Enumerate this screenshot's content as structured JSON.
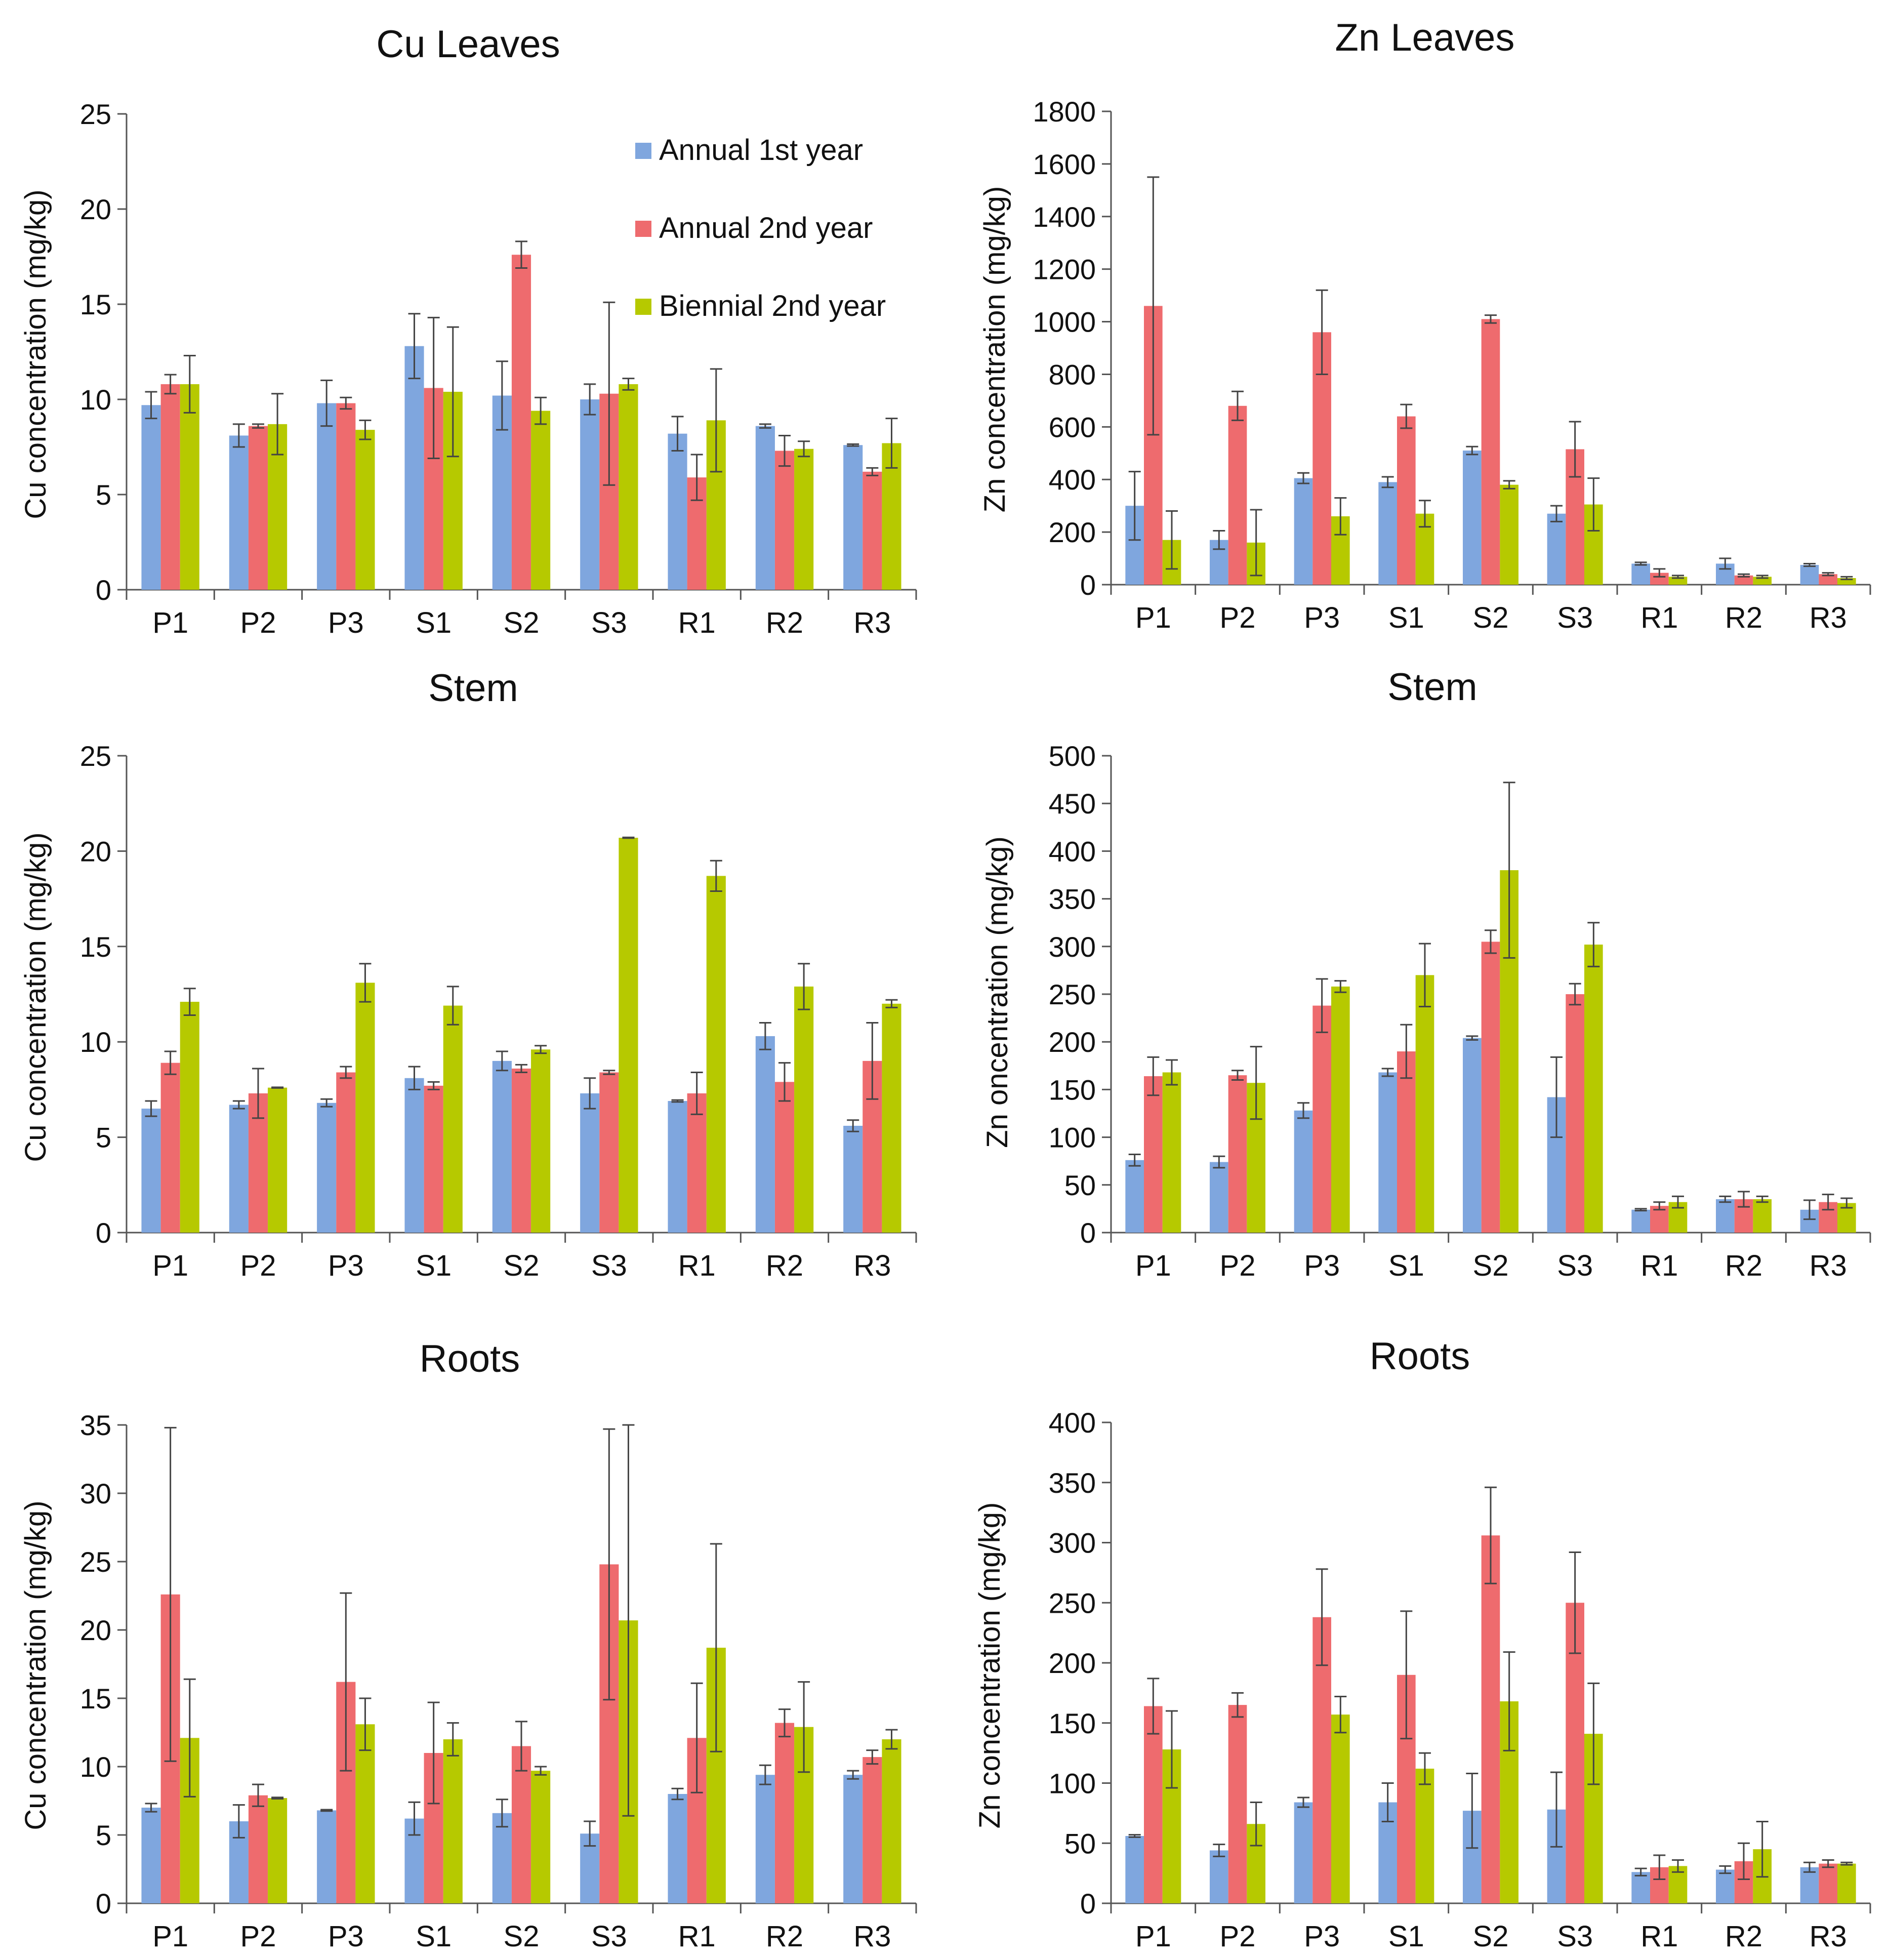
{
  "colors": {
    "annual_1st": "#7fa6de",
    "annual_2nd": "#ee6b6e",
    "biennial_2nd": "#b6c900",
    "axis": "#555555",
    "error": "#444444"
  },
  "legend": [
    {
      "key": "annual_1st",
      "label": "Annual 1st year"
    },
    {
      "key": "annual_2nd",
      "label": "Annual 2nd year"
    },
    {
      "key": "biennial_2nd",
      "label": "Biennial 2nd year"
    }
  ],
  "chart_data": [
    {
      "type": "bar",
      "title": "Cu Leaves",
      "ylabel": "Cu concentration (mg/kg)",
      "xlabel": "",
      "ylim": [
        0,
        25
      ],
      "yticks": [
        0,
        5,
        10,
        15,
        20,
        25
      ],
      "legend": "top-right",
      "categories": [
        "P1",
        "P2",
        "P3",
        "S1",
        "S2",
        "S3",
        "R1",
        "R2",
        "R3"
      ],
      "series": [
        {
          "name": "Annual 1st year",
          "values": [
            9.7,
            8.1,
            9.8,
            12.8,
            10.2,
            10.0,
            8.2,
            8.6,
            7.6
          ],
          "errors": [
            0.7,
            0.6,
            1.2,
            1.7,
            1.8,
            0.8,
            0.9,
            0.1,
            0.05
          ]
        },
        {
          "name": "Annual 2nd year",
          "values": [
            10.8,
            8.6,
            9.8,
            10.6,
            17.6,
            10.3,
            5.9,
            7.3,
            6.2
          ],
          "errors": [
            0.5,
            0.1,
            0.3,
            3.7,
            0.7,
            4.8,
            1.2,
            0.8,
            0.2
          ]
        },
        {
          "name": "Biennial 2nd year",
          "values": [
            10.8,
            8.7,
            8.4,
            10.4,
            9.4,
            10.8,
            8.9,
            7.4,
            7.7
          ],
          "errors": [
            1.5,
            1.6,
            0.5,
            3.4,
            0.7,
            0.3,
            2.7,
            0.4,
            1.3
          ]
        }
      ]
    },
    {
      "type": "bar",
      "title": "Zn Leaves",
      "ylabel": "Zn concentration (mg/kg)",
      "xlabel": "",
      "ylim": [
        0,
        1800
      ],
      "yticks": [
        0,
        200,
        400,
        600,
        800,
        1000,
        1200,
        1400,
        1600,
        1800
      ],
      "categories": [
        "P1",
        "P2",
        "P3",
        "S1",
        "S2",
        "S3",
        "R1",
        "R2",
        "R3"
      ],
      "series": [
        {
          "name": "Annual 1st year",
          "values": [
            300,
            170,
            405,
            390,
            510,
            270,
            80,
            80,
            75
          ],
          "errors": [
            130,
            35,
            20,
            20,
            15,
            30,
            5,
            20,
            5
          ]
        },
        {
          "name": "Annual 2nd year",
          "values": [
            1060,
            680,
            960,
            640,
            1010,
            515,
            45,
            35,
            40
          ],
          "errors": [
            490,
            55,
            160,
            45,
            15,
            105,
            15,
            5,
            5
          ]
        },
        {
          "name": "Biennial 2nd year",
          "values": [
            170,
            160,
            260,
            270,
            380,
            305,
            30,
            30,
            25
          ],
          "errors": [
            110,
            125,
            70,
            50,
            15,
            100,
            5,
            5,
            5
          ]
        }
      ]
    },
    {
      "type": "bar",
      "title": "Stem",
      "ylabel": "Cu concentration (mg/kg)",
      "xlabel": "",
      "ylim": [
        0,
        25
      ],
      "yticks": [
        0,
        5,
        10,
        15,
        20,
        25
      ],
      "categories": [
        "P1",
        "P2",
        "P3",
        "S1",
        "S2",
        "S3",
        "R1",
        "R2",
        "R3"
      ],
      "series": [
        {
          "name": "Annual 1st year",
          "values": [
            6.5,
            6.7,
            6.8,
            8.1,
            9.0,
            7.3,
            6.9,
            10.3,
            5.6
          ],
          "errors": [
            0.4,
            0.2,
            0.2,
            0.6,
            0.5,
            0.8,
            0.05,
            0.7,
            0.3
          ]
        },
        {
          "name": "Annual 2nd year",
          "values": [
            8.9,
            7.3,
            8.4,
            7.7,
            8.6,
            8.4,
            7.3,
            7.9,
            9.0
          ],
          "errors": [
            0.6,
            1.3,
            0.3,
            0.2,
            0.2,
            0.1,
            1.1,
            1.0,
            2.0
          ]
        },
        {
          "name": "Biennial 2nd year",
          "values": [
            12.1,
            7.6,
            13.1,
            11.9,
            9.6,
            20.7,
            18.7,
            12.9,
            12.0
          ],
          "errors": [
            0.7,
            0.02,
            1.0,
            1.0,
            0.2,
            0.02,
            0.8,
            1.2,
            0.2
          ]
        }
      ]
    },
    {
      "type": "bar",
      "title": "Stem",
      "ylabel": "Zn oncentration (mg/kg)",
      "xlabel": "",
      "ylim": [
        0,
        500
      ],
      "yticks": [
        0,
        50,
        100,
        150,
        200,
        250,
        300,
        350,
        400,
        450,
        500
      ],
      "categories": [
        "P1",
        "P2",
        "P3",
        "S1",
        "S2",
        "S3",
        "R1",
        "R2",
        "R3"
      ],
      "series": [
        {
          "name": "Annual 1st year",
          "values": [
            76,
            74,
            128,
            168,
            204,
            142,
            24,
            35,
            24
          ],
          "errors": [
            6,
            6,
            8,
            4,
            2,
            42,
            1,
            3,
            10
          ]
        },
        {
          "name": "Annual 2nd year",
          "values": [
            164,
            165,
            238,
            190,
            305,
            250,
            28,
            35,
            32
          ],
          "errors": [
            20,
            5,
            28,
            28,
            12,
            11,
            4,
            8,
            8
          ]
        },
        {
          "name": "Biennial 2nd year",
          "values": [
            168,
            157,
            258,
            270,
            380,
            302,
            32,
            35,
            31
          ],
          "errors": [
            13,
            38,
            6,
            33,
            92,
            23,
            6,
            3,
            5
          ]
        }
      ]
    },
    {
      "type": "bar",
      "title": "Roots",
      "ylabel": "Cu concentration (mg/kg)",
      "xlabel": "",
      "ylim": [
        0,
        35
      ],
      "yticks": [
        0,
        5,
        10,
        15,
        20,
        25,
        30,
        35
      ],
      "categories": [
        "P1",
        "P2",
        "P3",
        "S1",
        "S2",
        "S3",
        "R1",
        "R2",
        "R3"
      ],
      "series": [
        {
          "name": "Annual 1st year",
          "values": [
            7.0,
            6.0,
            6.8,
            6.2,
            6.6,
            5.1,
            8.0,
            9.4,
            9.4
          ],
          "errors": [
            0.3,
            1.2,
            0.05,
            1.2,
            1.0,
            0.9,
            0.4,
            0.7,
            0.3
          ]
        },
        {
          "name": "Annual 2nd year",
          "values": [
            22.6,
            7.9,
            16.2,
            11.0,
            11.5,
            24.8,
            12.1,
            13.2,
            10.7
          ],
          "errors": [
            12.2,
            0.8,
            6.5,
            3.7,
            1.8,
            9.9,
            4.0,
            1.0,
            0.5
          ]
        },
        {
          "name": "Biennial 2nd year",
          "values": [
            12.1,
            7.7,
            13.1,
            12.0,
            9.7,
            20.7,
            18.7,
            12.9,
            12.0
          ],
          "errors": [
            4.3,
            0.05,
            1.9,
            1.2,
            0.3,
            14.3,
            7.6,
            3.3,
            0.7
          ]
        }
      ]
    },
    {
      "type": "bar",
      "title": "Roots",
      "ylabel": "Zn concentration (mg/kg)",
      "xlabel": "",
      "ylim": [
        0,
        400
      ],
      "yticks": [
        0,
        50,
        100,
        150,
        200,
        250,
        300,
        350,
        400
      ],
      "categories": [
        "P1",
        "P2",
        "P3",
        "S1",
        "S2",
        "S3",
        "R1",
        "R2",
        "R3"
      ],
      "series": [
        {
          "name": "Annual 1st year",
          "values": [
            56,
            44,
            84,
            84,
            77,
            78,
            26,
            28,
            30
          ],
          "errors": [
            1,
            5,
            4,
            16,
            31,
            31,
            3,
            3,
            4
          ]
        },
        {
          "name": "Annual 2nd year",
          "values": [
            164,
            165,
            238,
            190,
            306,
            250,
            30,
            35,
            33
          ],
          "errors": [
            23,
            10,
            40,
            53,
            40,
            42,
            10,
            15,
            3
          ]
        },
        {
          "name": "Biennial 2nd year",
          "values": [
            128,
            66,
            157,
            112,
            168,
            141,
            31,
            45,
            33
          ],
          "errors": [
            32,
            18,
            15,
            13,
            41,
            42,
            5,
            23,
            1
          ]
        }
      ]
    }
  ]
}
